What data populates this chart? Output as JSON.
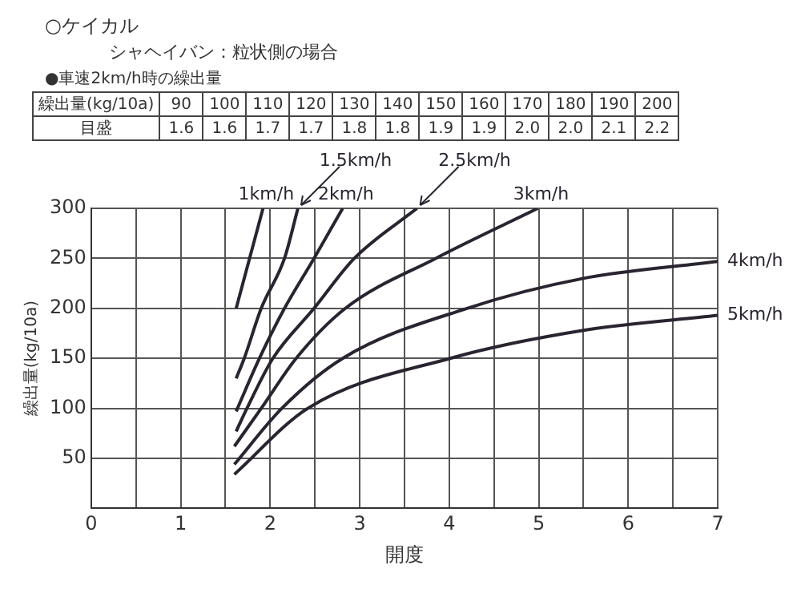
{
  "chart_data": {
    "type": "line",
    "title": "○ケイカル",
    "subtitle": "シャヘイバン：粒状側の場合",
    "xlabel": "開度",
    "ylabel": "繰出量(kg/10a)",
    "annotations": [
      "●車速2km/h時の繰出量",
      "繰出量(kg/10a)",
      "90",
      "100",
      "110",
      "120",
      "130",
      "140",
      "150",
      "160",
      "170",
      "180",
      "190",
      "200",
      "目盛",
      "1.6",
      "1.6",
      "1.7",
      "1.7",
      "1.8",
      "1.8",
      "1.9",
      "1.9",
      "2.0",
      "2.0",
      "2.1",
      "2.2"
    ],
    "series": [
      {
        "name": "1km/h",
        "color": "#2a2430",
        "x": [
          1.62,
          1.92
        ],
        "values": [
          200,
          300
        ]
      },
      {
        "name": "1.5km/h",
        "color": "#2a2430",
        "x": [
          1.62,
          1.71,
          1.9,
          2.16,
          2.31
        ],
        "values": [
          130,
          150,
          200,
          250,
          300
        ]
      },
      {
        "name": "2km/h",
        "color": "#2a2430",
        "x": [
          1.62,
          1.88,
          2.16,
          2.49,
          2.81
        ],
        "values": [
          97,
          150,
          200,
          250,
          300
        ]
      },
      {
        "name": "2.5km/h",
        "color": "#2a2430",
        "x": [
          1.62,
          1.74,
          2.03,
          2.49,
          2.94,
          3.64
        ],
        "values": [
          77,
          100,
          150,
          200,
          250,
          300
        ]
      },
      {
        "name": "3km/h",
        "color": "#2a2430",
        "x": [
          1.6,
          1.9,
          2.29,
          2.84,
          3.85,
          4.99
        ],
        "values": [
          62,
          100,
          150,
          200,
          250,
          300
        ]
      },
      {
        "name": "4km/h",
        "color": "#2a2430",
        "x": [
          1.6,
          2.13,
          2.81,
          4.2,
          5.5,
          7
        ],
        "values": [
          44,
          100,
          150,
          200,
          230,
          247
        ]
      },
      {
        "name": "5km/h",
        "color": "#2a2430",
        "x": [
          1.6,
          2.42,
          4.01,
          5.5,
          7
        ],
        "values": [
          34,
          100,
          150,
          178,
          193
        ]
      }
    ],
    "xlim": [
      0,
      7
    ],
    "xticks": [
      0,
      {
        "value": 0.5,
        "label": null
      },
      1,
      {
        "value": 1.5,
        "label": null
      },
      2,
      {
        "value": 2.5,
        "label": null
      },
      3,
      {
        "value": 3.5,
        "label": null
      },
      4,
      {
        "value": 4.5,
        "label": null
      },
      5,
      {
        "value": 5.5,
        "label": null
      },
      6,
      {
        "value": 6.5,
        "label": null
      },
      7
    ],
    "ylim": [
      0,
      300
    ],
    "yticks": [
      50,
      100,
      150,
      200,
      250,
      300
    ],
    "grid": true,
    "legend": false,
    "marker": "none",
    "line_style": "solid"
  }
}
